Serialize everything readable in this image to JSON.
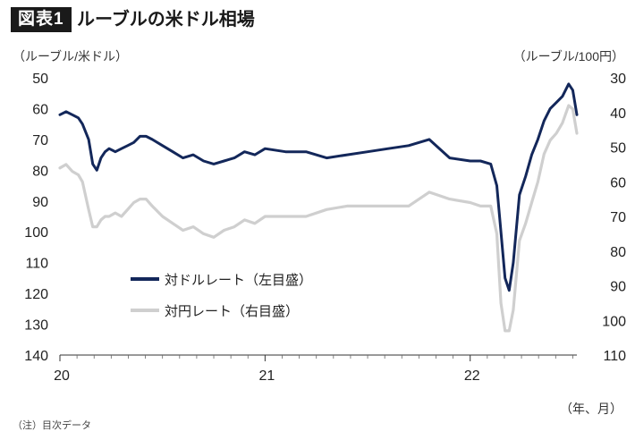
{
  "figure": {
    "badge": "図表1",
    "title": "ルーブルの米ドル相場",
    "left_unit": "（ルーブル/米ドル）",
    "right_unit": "（ルーブル/100円）",
    "x_unit": "（年、月）",
    "note": "（注）目次データ"
  },
  "chart_data": {
    "type": "line",
    "x": [
      "20",
      "21",
      "22"
    ],
    "left_axis": {
      "ticks": [
        "50",
        "60",
        "70",
        "80",
        "90",
        "100",
        "110",
        "120",
        "130",
        "140"
      ],
      "ylim": [
        50,
        140
      ],
      "inverted": true
    },
    "right_axis": {
      "ticks": [
        "30",
        "40",
        "50",
        "60",
        "70",
        "80",
        "90",
        "100",
        "110"
      ],
      "ylim": [
        30,
        110
      ],
      "inverted": true
    },
    "x_axis": {
      "range_years": [
        2020.0,
        2022.52
      ],
      "ticks": [
        2020,
        2021,
        2022
      ]
    },
    "grid": false,
    "legend_placement": "lower-left",
    "colors": {
      "usd": "#13275a",
      "jpy": "#cfcfcf"
    },
    "series": [
      {
        "name": "対ドルレート（左目盛）",
        "axis": "left",
        "x": [
          2020.0,
          2020.03,
          2020.06,
          2020.09,
          2020.11,
          2020.14,
          2020.16,
          2020.18,
          2020.2,
          2020.22,
          2020.24,
          2020.27,
          2020.3,
          2020.33,
          2020.36,
          2020.39,
          2020.42,
          2020.45,
          2020.5,
          2020.55,
          2020.6,
          2020.65,
          2020.7,
          2020.75,
          2020.8,
          2020.85,
          2020.9,
          2020.95,
          2021.0,
          2021.1,
          2021.2,
          2021.3,
          2021.4,
          2021.5,
          2021.6,
          2021.7,
          2021.8,
          2021.9,
          2022.0,
          2022.05,
          2022.1,
          2022.13,
          2022.15,
          2022.17,
          2022.19,
          2022.21,
          2022.24,
          2022.27,
          2022.3,
          2022.33,
          2022.36,
          2022.39,
          2022.42,
          2022.45,
          2022.48,
          2022.5,
          2022.52
        ],
        "values": [
          62,
          61,
          62,
          63,
          65,
          70,
          78,
          80,
          76,
          74,
          73,
          74,
          73,
          72,
          71,
          69,
          69,
          70,
          72,
          74,
          76,
          75,
          77,
          78,
          77,
          76,
          74,
          75,
          73,
          74,
          74,
          76,
          75,
          74,
          73,
          72,
          70,
          76,
          77,
          77,
          78,
          85,
          100,
          115,
          119,
          110,
          88,
          82,
          75,
          70,
          64,
          60,
          58,
          56,
          52,
          54,
          62
        ]
      },
      {
        "name": "対円レート（右目盛）",
        "axis": "right",
        "x": [
          2020.0,
          2020.03,
          2020.06,
          2020.09,
          2020.11,
          2020.14,
          2020.16,
          2020.18,
          2020.2,
          2020.22,
          2020.24,
          2020.27,
          2020.3,
          2020.33,
          2020.36,
          2020.39,
          2020.42,
          2020.45,
          2020.5,
          2020.55,
          2020.6,
          2020.65,
          2020.7,
          2020.75,
          2020.8,
          2020.85,
          2020.9,
          2020.95,
          2021.0,
          2021.1,
          2021.2,
          2021.3,
          2021.4,
          2021.5,
          2021.6,
          2021.7,
          2021.8,
          2021.9,
          2022.0,
          2022.05,
          2022.1,
          2022.13,
          2022.15,
          2022.17,
          2022.19,
          2022.21,
          2022.24,
          2022.27,
          2022.3,
          2022.33,
          2022.36,
          2022.39,
          2022.42,
          2022.45,
          2022.48,
          2022.5,
          2022.52
        ],
        "values": [
          56,
          55,
          57,
          58,
          60,
          68,
          73,
          73,
          71,
          70,
          70,
          69,
          70,
          68,
          66,
          65,
          65,
          67,
          70,
          72,
          74,
          73,
          75,
          76,
          74,
          73,
          71,
          72,
          70,
          70,
          70,
          68,
          67,
          67,
          67,
          67,
          63,
          65,
          66,
          67,
          67,
          75,
          95,
          103,
          103,
          97,
          77,
          72,
          66,
          60,
          52,
          48,
          46,
          43,
          38,
          39,
          46
        ]
      }
    ]
  }
}
